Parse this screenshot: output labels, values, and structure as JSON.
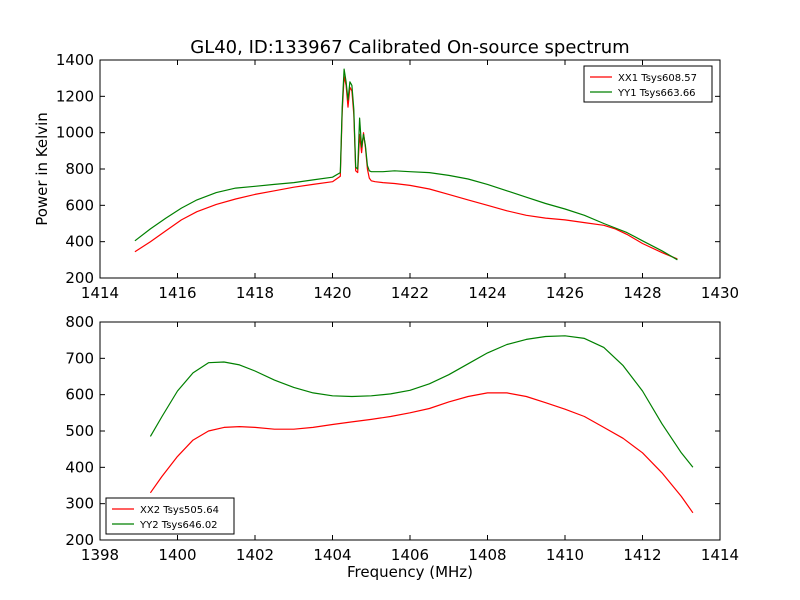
{
  "figure": {
    "title": "GL40, ID:133967 Calibrated On-source spectrum"
  },
  "chart_data": [
    {
      "type": "line",
      "xlim": [
        1414,
        1430
      ],
      "ylim": [
        200,
        1400
      ],
      "xticks": [
        "1414",
        "1416",
        "1418",
        "1420",
        "1422",
        "1424",
        "1426",
        "1428",
        "1430"
      ],
      "yticks": [
        "200",
        "400",
        "600",
        "800",
        "1000",
        "1200",
        "1400"
      ],
      "xlabel": "",
      "ylabel": "Power in Kelvin",
      "legend_position": "top-right",
      "series": [
        {
          "name": "XX1 Tsys608.57",
          "color": "#ff0000",
          "x": [
            1414.9,
            1415.3,
            1415.7,
            1416.1,
            1416.5,
            1417.0,
            1417.5,
            1418.0,
            1418.5,
            1419.0,
            1419.5,
            1420.0,
            1420.2,
            1420.25,
            1420.3,
            1420.35,
            1420.4,
            1420.45,
            1420.5,
            1420.55,
            1420.6,
            1420.65,
            1420.7,
            1420.75,
            1420.8,
            1420.85,
            1420.9,
            1420.95,
            1421.0,
            1421.1,
            1421.3,
            1421.6,
            1422.0,
            1422.5,
            1423.0,
            1423.5,
            1424.0,
            1424.5,
            1425.0,
            1425.5,
            1426.0,
            1426.5,
            1427.0,
            1427.3,
            1427.6,
            1428.0,
            1428.5,
            1428.9
          ],
          "y": [
            345,
            400,
            460,
            520,
            565,
            605,
            635,
            660,
            680,
            700,
            715,
            730,
            760,
            1110,
            1310,
            1260,
            1140,
            1250,
            1230,
            1100,
            790,
            780,
            990,
            890,
            1000,
            920,
            800,
            750,
            735,
            730,
            725,
            720,
            710,
            690,
            660,
            630,
            600,
            570,
            545,
            530,
            520,
            505,
            490,
            470,
            440,
            390,
            340,
            305
          ]
        },
        {
          "name": "YY1 Tsys663.66",
          "color": "#008000",
          "x": [
            1414.9,
            1415.3,
            1415.7,
            1416.1,
            1416.5,
            1417.0,
            1417.5,
            1418.0,
            1418.5,
            1419.0,
            1419.5,
            1420.0,
            1420.2,
            1420.25,
            1420.3,
            1420.35,
            1420.4,
            1420.45,
            1420.5,
            1420.55,
            1420.6,
            1420.65,
            1420.7,
            1420.75,
            1420.8,
            1420.85,
            1420.9,
            1420.95,
            1421.0,
            1421.1,
            1421.3,
            1421.6,
            1422.0,
            1422.5,
            1423.0,
            1423.5,
            1424.0,
            1424.5,
            1425.0,
            1425.5,
            1426.0,
            1426.5,
            1427.0,
            1427.3,
            1427.6,
            1428.0,
            1428.5,
            1428.9
          ],
          "y": [
            405,
            470,
            530,
            585,
            630,
            670,
            695,
            705,
            715,
            725,
            740,
            755,
            780,
            1140,
            1350,
            1280,
            1180,
            1280,
            1260,
            1130,
            810,
            800,
            1080,
            920,
            990,
            930,
            820,
            790,
            785,
            785,
            785,
            790,
            785,
            780,
            765,
            745,
            715,
            680,
            645,
            610,
            580,
            545,
            500,
            475,
            450,
            405,
            350,
            300
          ]
        }
      ]
    },
    {
      "type": "line",
      "xlim": [
        1398,
        1414
      ],
      "ylim": [
        200,
        800
      ],
      "xticks": [
        "1398",
        "1400",
        "1402",
        "1404",
        "1406",
        "1408",
        "1410",
        "1412",
        "1414"
      ],
      "yticks": [
        "200",
        "300",
        "400",
        "500",
        "600",
        "700",
        "800"
      ],
      "xlabel": "Frequency (MHz)",
      "ylabel": "",
      "legend_position": "bottom-left",
      "series": [
        {
          "name": "XX2 Tsys505.64",
          "color": "#ff0000",
          "x": [
            1399.3,
            1399.6,
            1400.0,
            1400.4,
            1400.8,
            1401.2,
            1401.6,
            1402.0,
            1402.5,
            1403.0,
            1403.5,
            1404.0,
            1404.5,
            1405.0,
            1405.5,
            1406.0,
            1406.5,
            1407.0,
            1407.5,
            1408.0,
            1408.5,
            1409.0,
            1409.5,
            1410.0,
            1410.5,
            1411.0,
            1411.5,
            1412.0,
            1412.5,
            1413.0,
            1413.3
          ],
          "y": [
            330,
            375,
            430,
            475,
            500,
            510,
            512,
            510,
            505,
            505,
            510,
            518,
            525,
            532,
            540,
            550,
            562,
            580,
            595,
            605,
            605,
            595,
            578,
            560,
            540,
            510,
            480,
            440,
            385,
            320,
            275
          ]
        },
        {
          "name": "YY2 Tsys646.02",
          "color": "#008000",
          "x": [
            1399.3,
            1399.6,
            1400.0,
            1400.4,
            1400.8,
            1401.2,
            1401.6,
            1402.0,
            1402.5,
            1403.0,
            1403.5,
            1404.0,
            1404.5,
            1405.0,
            1405.5,
            1406.0,
            1406.5,
            1407.0,
            1407.5,
            1408.0,
            1408.5,
            1409.0,
            1409.5,
            1410.0,
            1410.5,
            1411.0,
            1411.5,
            1412.0,
            1412.5,
            1413.0,
            1413.3
          ],
          "y": [
            485,
            540,
            610,
            660,
            688,
            690,
            682,
            665,
            640,
            620,
            605,
            597,
            595,
            597,
            602,
            612,
            630,
            655,
            685,
            715,
            738,
            752,
            760,
            762,
            755,
            730,
            680,
            610,
            520,
            440,
            400
          ]
        }
      ]
    }
  ]
}
